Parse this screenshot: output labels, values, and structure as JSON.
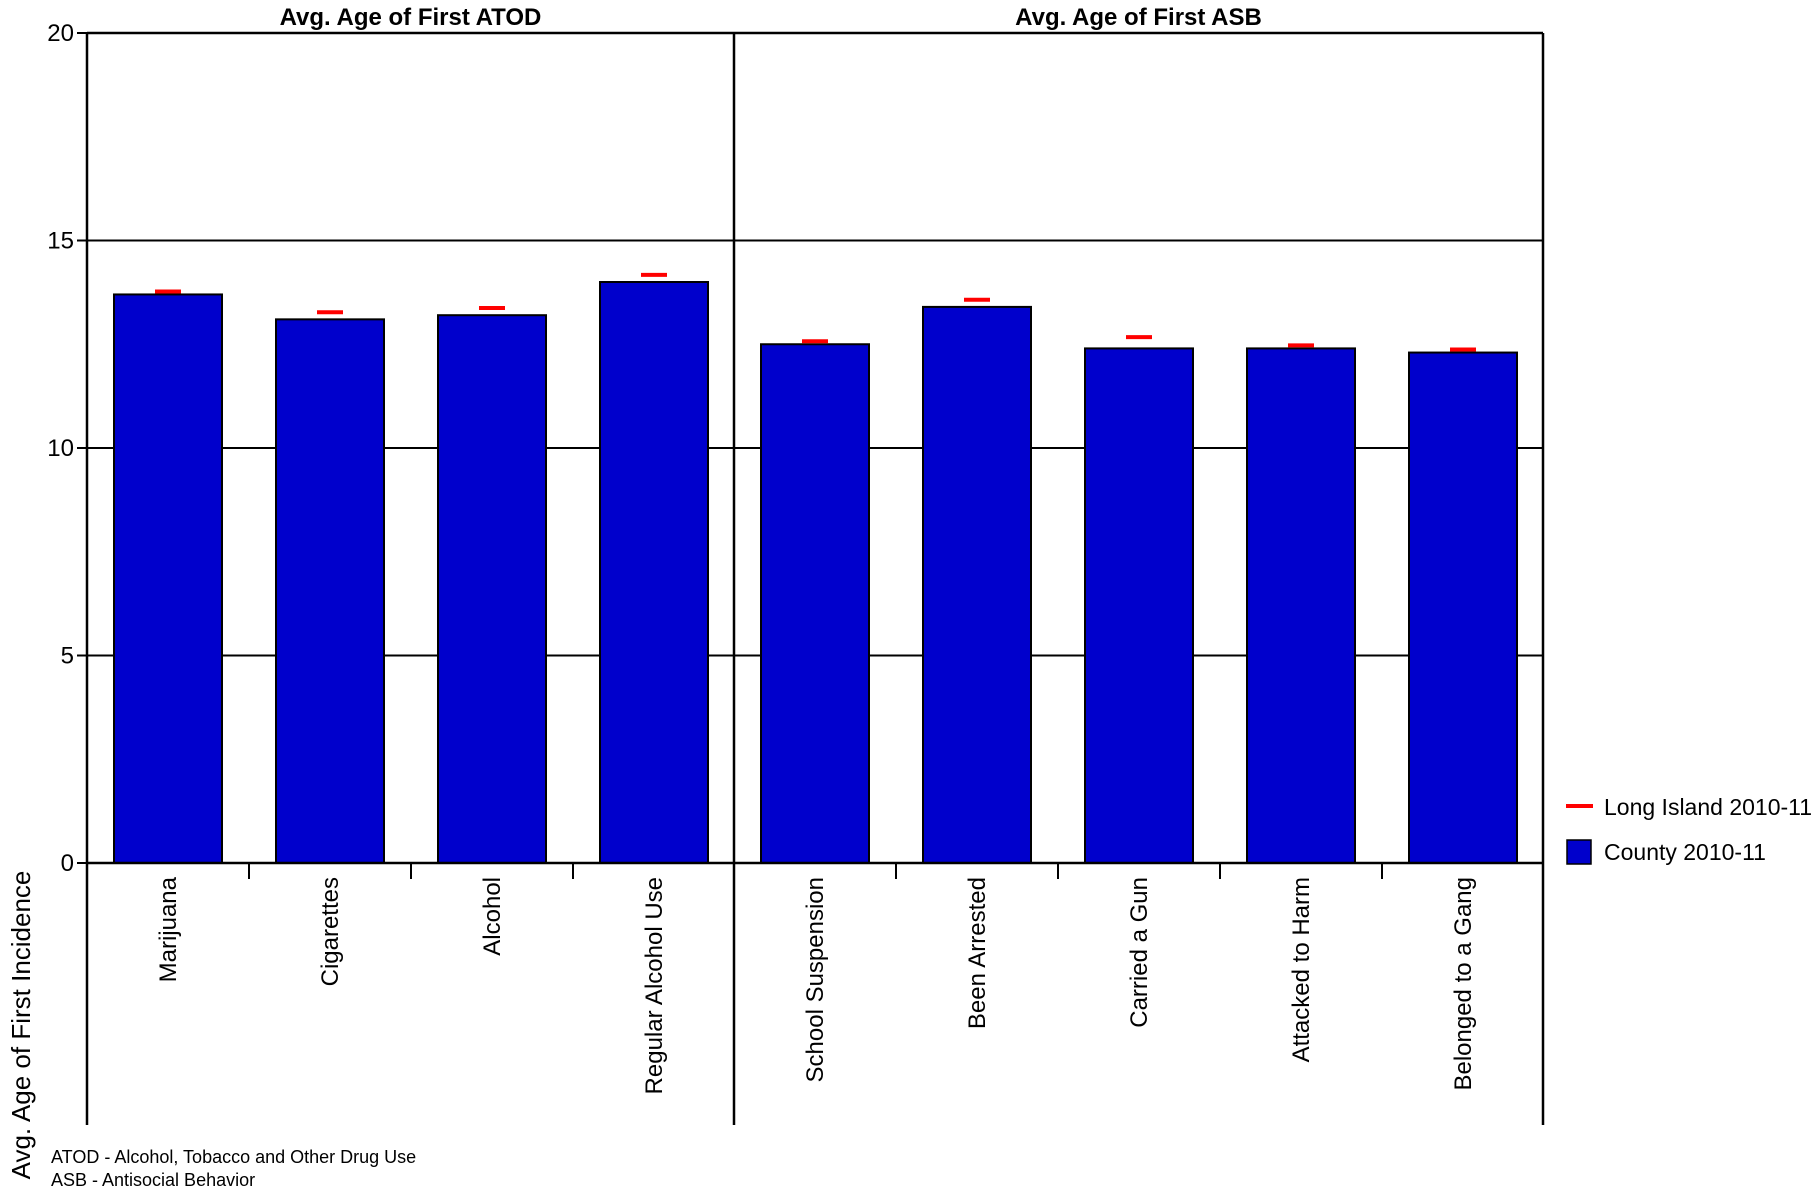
{
  "chart_data": {
    "type": "bar",
    "ylabel": "Avg. Age of First Incidence",
    "ylim": [
      0,
      20
    ],
    "yticks": [
      "0",
      "5",
      "10",
      "15",
      "20"
    ],
    "grid": true,
    "legend_position": "right",
    "series": [
      {
        "name": "County 2010-11",
        "mark": "bar",
        "color": "#0000CC"
      },
      {
        "name": "Long Island 2010-11",
        "mark": "dash",
        "color": "#FF0000"
      }
    ],
    "panels": [
      {
        "title": "Avg. Age of First ATOD",
        "categories": [
          "Marijuana",
          "Cigarettes",
          "Alcohol",
          "Regular Alcohol Use"
        ],
        "county": [
          13.7,
          13.1,
          13.2,
          14.0
        ],
        "long_island": [
          13.7,
          13.2,
          13.3,
          14.1
        ]
      },
      {
        "title": "Avg. Age of First ASB",
        "categories": [
          "School Suspension",
          "Been Arrested",
          "Carried a Gun",
          "Attacked to Harm",
          "Belonged to a Gang"
        ],
        "county": [
          12.5,
          13.4,
          12.4,
          12.4,
          12.3
        ],
        "long_island": [
          12.5,
          13.5,
          12.6,
          12.4,
          12.3
        ]
      }
    ],
    "footnotes": [
      "ATOD - Alcohol, Tobacco and Other Drug Use",
      "ASB - Antisocial Behavior"
    ]
  }
}
